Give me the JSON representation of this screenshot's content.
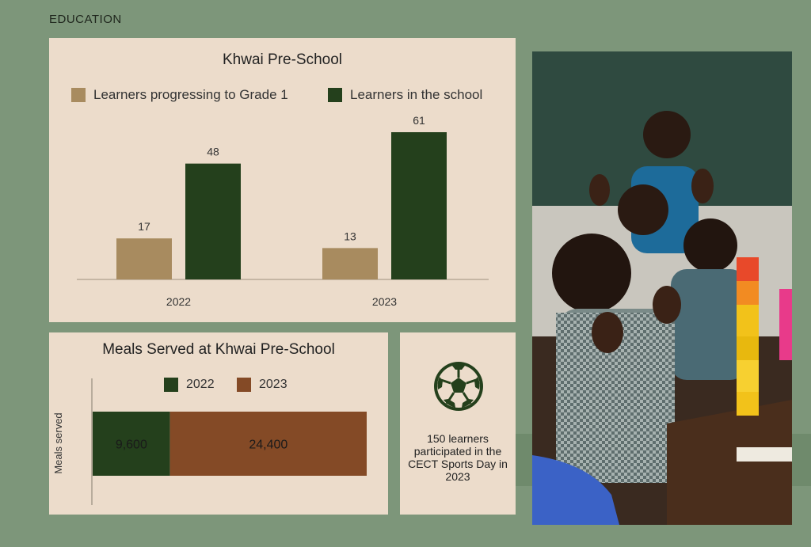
{
  "section_label": "EDUCATION",
  "colors": {
    "background": "#7d967a",
    "panel": "#ecdccb",
    "dark_green": "#24401c",
    "tan": "#a88b5f",
    "brown": "#844a26"
  },
  "chart_data": [
    {
      "type": "bar",
      "title": "Khwai Pre-School",
      "categories": [
        "2022",
        "2023"
      ],
      "series": [
        {
          "name": "Learners progressing to Grade 1",
          "values": [
            17,
            13
          ],
          "color": "#a88b5f"
        },
        {
          "name": "Learners in the school",
          "values": [
            48,
            61
          ],
          "color": "#24401c"
        }
      ],
      "value_labels": [
        "17",
        "48",
        "13",
        "61"
      ],
      "ylim": [
        0,
        61
      ],
      "legend_position": "top"
    },
    {
      "type": "bar",
      "orientation": "horizontal-stacked",
      "title": "Meals Served at Khwai Pre-School",
      "ylabel": "Meals served",
      "series": [
        {
          "name": "2022",
          "value": 9600,
          "label": "9,600",
          "color": "#24401c"
        },
        {
          "name": "2023",
          "value": 24400,
          "label": "24,400",
          "color": "#844a26"
        }
      ],
      "legend_position": "top"
    }
  ],
  "sports": {
    "icon": "soccer-ball-icon",
    "text": "150 learners participated in the CECT Sports Day in  2023"
  },
  "photo": {
    "icon": "classroom-photo"
  }
}
